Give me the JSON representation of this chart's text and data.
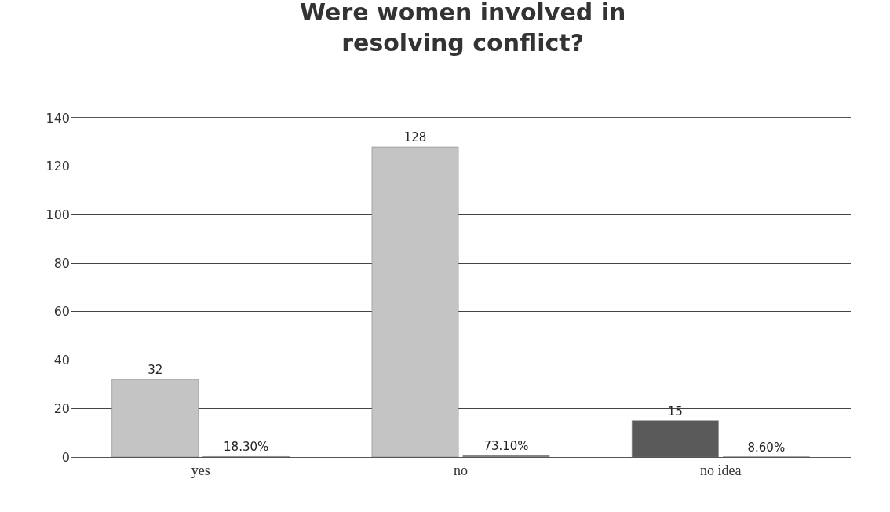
{
  "chart_data": {
    "type": "bar",
    "title": "Were women involved in\nresolving conflict?",
    "categories": [
      "yes",
      "no",
      "no idea"
    ],
    "series": [
      {
        "colors": [
          "#c4c4c4",
          "#c4c4c4",
          "#5a5a5a"
        ],
        "values": [
          32,
          128,
          15
        ],
        "value_labels": [
          "32",
          "128",
          "15"
        ]
      },
      {
        "color": "#8a8a8a",
        "values": [
          0.183,
          0.731,
          0.086
        ],
        "value_labels": [
          "18.30%",
          "73.10%",
          "8.60%"
        ]
      }
    ],
    "ylim": [
      0,
      140
    ],
    "yticks": [
      0,
      20,
      40,
      60,
      80,
      100,
      120,
      140
    ],
    "grid": "y"
  }
}
